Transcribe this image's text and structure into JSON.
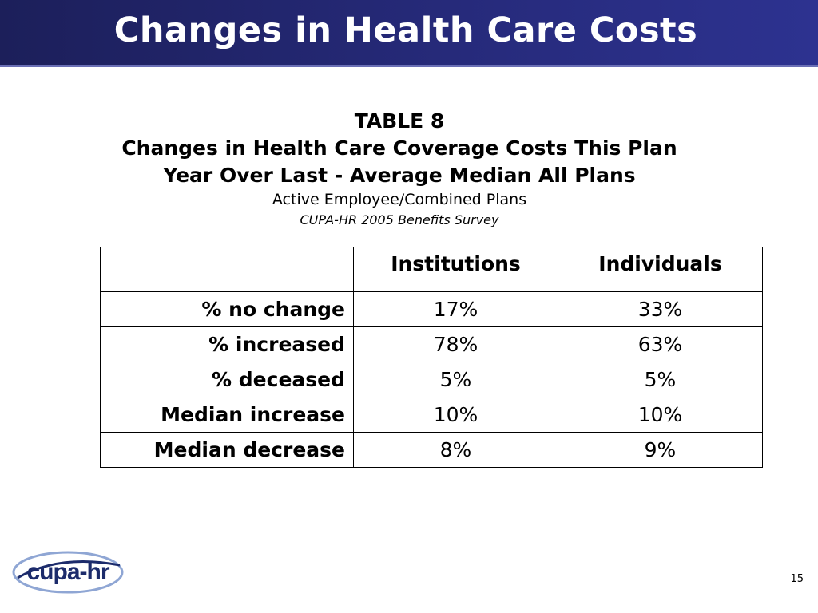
{
  "slide": {
    "title": "Changes in Health Care Costs",
    "page_number": "15"
  },
  "caption": {
    "label": "TABLE 8",
    "line1": "Changes in Health Care Coverage Costs This Plan",
    "line2": "Year Over Last - Average Median All Plans",
    "subtitle": "Active Employee/Combined Plans",
    "source": "CUPA-HR 2005 Benefits Survey"
  },
  "table": {
    "headers": [
      "",
      "Institutions",
      "Individuals"
    ],
    "rows": [
      [
        "% no change",
        "17%",
        "33%"
      ],
      [
        "% increased",
        "78%",
        "63%"
      ],
      [
        "% deceased",
        "5%",
        "5%"
      ],
      [
        "Median increase",
        "10%",
        "10%"
      ],
      [
        "Median decrease",
        "8%",
        "9%"
      ]
    ]
  },
  "logo": {
    "text": "cupa-hr",
    "colors": {
      "primary": "#1c2b6b",
      "swoosh": "#8fa6d4"
    }
  },
  "colors": {
    "header_bg": "#262a7a",
    "header_text": "#ffffff"
  }
}
